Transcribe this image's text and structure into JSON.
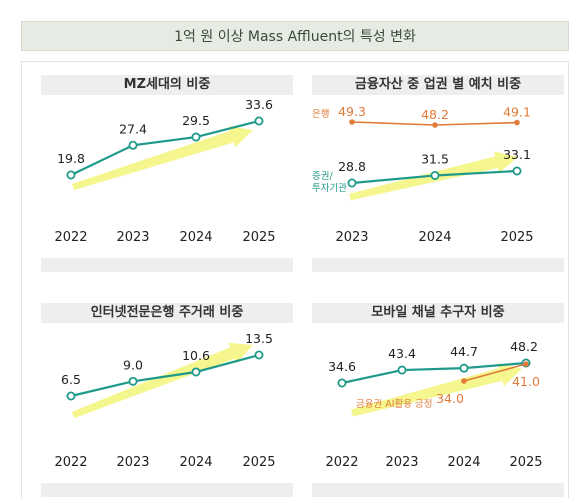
{
  "header": {
    "title": "1억 원 이상 Mass Affluent의 특성 변화"
  },
  "colors": {
    "teal": "#1f9a8a",
    "orange": "#e07b39",
    "arrow": "#f3f57a"
  },
  "chart_data": [
    {
      "type": "line",
      "title": "MZ세대의 비중",
      "categories": [
        "2022",
        "2023",
        "2024",
        "2025"
      ],
      "series": [
        {
          "values": [
            19.8,
            27.4,
            29.5,
            33.6
          ]
        }
      ]
    },
    {
      "type": "line",
      "title": "금융자산 중 업권 별 예치 비중",
      "categories": [
        "2023",
        "2024",
        "2025"
      ],
      "series": [
        {
          "name": "은행",
          "values": [
            49.3,
            48.2,
            49.1
          ]
        },
        {
          "name": "증권/투자기관",
          "values": [
            28.8,
            31.5,
            33.1
          ]
        }
      ]
    },
    {
      "type": "line",
      "title": "인터넷전문은행 주거래 비중",
      "categories": [
        "2022",
        "2023",
        "2024",
        "2025"
      ],
      "series": [
        {
          "values": [
            6.5,
            9.0,
            10.6,
            13.5
          ]
        }
      ]
    },
    {
      "type": "line",
      "title": "모바일 채널 추구자 비중",
      "categories": [
        "2022",
        "2023",
        "2024",
        "2025"
      ],
      "series": [
        {
          "values": [
            34.6,
            43.4,
            44.7,
            48.2
          ]
        },
        {
          "name": "금융권 AI활용 긍정",
          "values": [
            null,
            null,
            34.0,
            41.0
          ]
        }
      ]
    }
  ]
}
